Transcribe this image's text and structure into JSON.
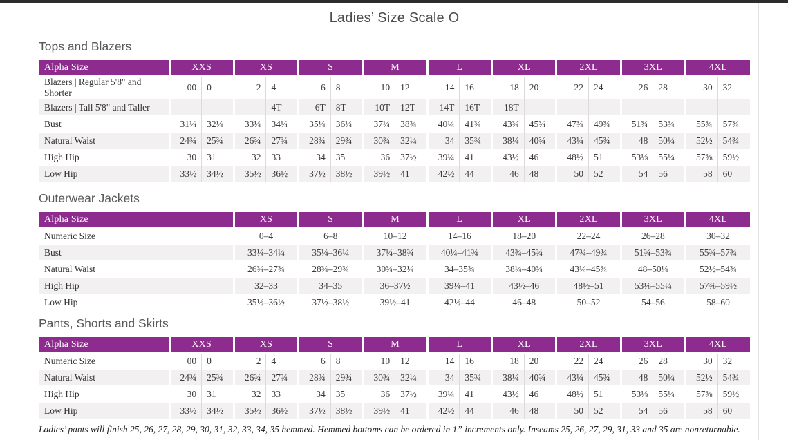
{
  "page": {
    "title": "Ladies’ Size Scale O",
    "footnote": "Ladies’ pants will finish 25, 26, 27, 28, 29, 30, 31, 32, 33, 34, 35 hemmed. Hemmed bottoms can be ordered in 1” increments only. Inseams 25, 26, 27, 29, 31, 33 and 35 are nonreturnable."
  },
  "colors": {
    "header_purple": "#8e2b8f",
    "stripe_gray": "#f2f0f0",
    "top_band": "#2d2d2d"
  },
  "tables": [
    {
      "section_title": "Tops and Blazers",
      "label_header": "Alpha Size",
      "paired": true,
      "size_headers": [
        "XXS",
        "XS",
        "S",
        "M",
        "L",
        "XL",
        "2XL",
        "3XL",
        "4XL"
      ],
      "rows": [
        {
          "label": "Blazers  |  Regular 5'8\" and Shorter",
          "values": [
            [
              "00",
              "0"
            ],
            [
              "2",
              "4"
            ],
            [
              "6",
              "8"
            ],
            [
              "10",
              "12"
            ],
            [
              "14",
              "16"
            ],
            [
              "18",
              "20"
            ],
            [
              "22",
              "24"
            ],
            [
              "26",
              "28"
            ],
            [
              "30",
              "32"
            ]
          ]
        },
        {
          "label": "Blazers  |  Tall 5'8\" and Taller",
          "values": [
            [
              "",
              ""
            ],
            [
              "",
              "4T"
            ],
            [
              "6T",
              "8T"
            ],
            [
              "10T",
              "12T"
            ],
            [
              "14T",
              "16T"
            ],
            [
              "18T",
              ""
            ],
            [
              "",
              ""
            ],
            [
              "",
              ""
            ],
            [
              "",
              ""
            ]
          ]
        },
        {
          "label": "Bust",
          "values": [
            [
              "31¼",
              "32¼"
            ],
            [
              "33¼",
              "34¼"
            ],
            [
              "35¼",
              "36¼"
            ],
            [
              "37¼",
              "38¾"
            ],
            [
              "40¼",
              "41¾"
            ],
            [
              "43¾",
              "45¾"
            ],
            [
              "47¾",
              "49¾"
            ],
            [
              "51¾",
              "53¾"
            ],
            [
              "55¾",
              "57¾"
            ]
          ]
        },
        {
          "label": "Natural Waist",
          "values": [
            [
              "24¾",
              "25¾"
            ],
            [
              "26¾",
              "27¾"
            ],
            [
              "28¾",
              "29¾"
            ],
            [
              "30¾",
              "32¼"
            ],
            [
              "34",
              "35¾"
            ],
            [
              "38¼",
              "40¾"
            ],
            [
              "43¼",
              "45¾"
            ],
            [
              "48",
              "50¼"
            ],
            [
              "52½",
              "54¾"
            ]
          ]
        },
        {
          "label": "High Hip",
          "values": [
            [
              "30",
              "31"
            ],
            [
              "32",
              "33"
            ],
            [
              "34",
              "35"
            ],
            [
              "36",
              "37½"
            ],
            [
              "39¼",
              "41"
            ],
            [
              "43½",
              "46"
            ],
            [
              "48½",
              "51"
            ],
            [
              "53⅛",
              "55¼"
            ],
            [
              "57⅜",
              "59½"
            ]
          ]
        },
        {
          "label": "Low Hip",
          "values": [
            [
              "33½",
              "34½"
            ],
            [
              "35½",
              "36½"
            ],
            [
              "37½",
              "38½"
            ],
            [
              "39½",
              "41"
            ],
            [
              "42½",
              "44"
            ],
            [
              "46",
              "48"
            ],
            [
              "50",
              "52"
            ],
            [
              "54",
              "56"
            ],
            [
              "58",
              "60"
            ]
          ]
        }
      ]
    },
    {
      "section_title": "Outerwear Jackets",
      "label_header": "Alpha Size",
      "paired": false,
      "size_headers": [
        "XS",
        "S",
        "M",
        "L",
        "XL",
        "2XL",
        "3XL",
        "4XL"
      ],
      "rows": [
        {
          "label": "Numeric Size",
          "values": [
            "0–4",
            "6–8",
            "10–12",
            "14–16",
            "18–20",
            "22–24",
            "26–28",
            "30–32"
          ]
        },
        {
          "label": "Bust",
          "values": [
            "33¼–34¼",
            "35¼–36¼",
            "37¼–38¾",
            "40¼–41¾",
            "43¾–45¾",
            "47¾–49¾",
            "51¾–53¾",
            "55¾–57¾"
          ]
        },
        {
          "label": "Natural Waist",
          "values": [
            "26¾–27¾",
            "28¾–29¾",
            "30¾–32¼",
            "34–35¾",
            "38¼–40¾",
            "43¼–45¾",
            "48–50¼",
            "52½–54¾"
          ]
        },
        {
          "label": "High Hip",
          "values": [
            "32–33",
            "34–35",
            "36–37½",
            "39¼–41",
            "43½–46",
            "48½–51",
            "53⅛–55¼",
            "57⅜–59½"
          ]
        },
        {
          "label": "Low Hip",
          "values": [
            "35½–36½",
            "37½–38½",
            "39½–41",
            "42½–44",
            "46–48",
            "50–52",
            "54–56",
            "58–60"
          ]
        }
      ]
    },
    {
      "section_title": "Pants, Shorts and Skirts",
      "label_header": "Alpha Size",
      "paired": true,
      "size_headers": [
        "XXS",
        "XS",
        "S",
        "M",
        "L",
        "XL",
        "2XL",
        "3XL",
        "4XL"
      ],
      "rows": [
        {
          "label": "Numeric Size",
          "values": [
            [
              "00",
              "0"
            ],
            [
              "2",
              "4"
            ],
            [
              "6",
              "8"
            ],
            [
              "10",
              "12"
            ],
            [
              "14",
              "16"
            ],
            [
              "18",
              "20"
            ],
            [
              "22",
              "24"
            ],
            [
              "26",
              "28"
            ],
            [
              "30",
              "32"
            ]
          ]
        },
        {
          "label": "Natural Waist",
          "values": [
            [
              "24¾",
              "25¾"
            ],
            [
              "26¾",
              "27¾"
            ],
            [
              "28¾",
              "29¾"
            ],
            [
              "30¾",
              "32¼"
            ],
            [
              "34",
              "35¾"
            ],
            [
              "38¼",
              "40¾"
            ],
            [
              "43¼",
              "45¾"
            ],
            [
              "48",
              "50¼"
            ],
            [
              "52½",
              "54¾"
            ]
          ]
        },
        {
          "label": "High Hip",
          "values": [
            [
              "30",
              "31"
            ],
            [
              "32",
              "33"
            ],
            [
              "34",
              "35"
            ],
            [
              "36",
              "37½"
            ],
            [
              "39¼",
              "41"
            ],
            [
              "43½",
              "46"
            ],
            [
              "48½",
              "51"
            ],
            [
              "53⅛",
              "55¼"
            ],
            [
              "57⅜",
              "59½"
            ]
          ]
        },
        {
          "label": "Low Hip",
          "values": [
            [
              "33½",
              "34½"
            ],
            [
              "35½",
              "36½"
            ],
            [
              "37½",
              "38½"
            ],
            [
              "39½",
              "41"
            ],
            [
              "42½",
              "44"
            ],
            [
              "46",
              "48"
            ],
            [
              "50",
              "52"
            ],
            [
              "54",
              "56"
            ],
            [
              "58",
              "60"
            ]
          ]
        }
      ]
    }
  ]
}
